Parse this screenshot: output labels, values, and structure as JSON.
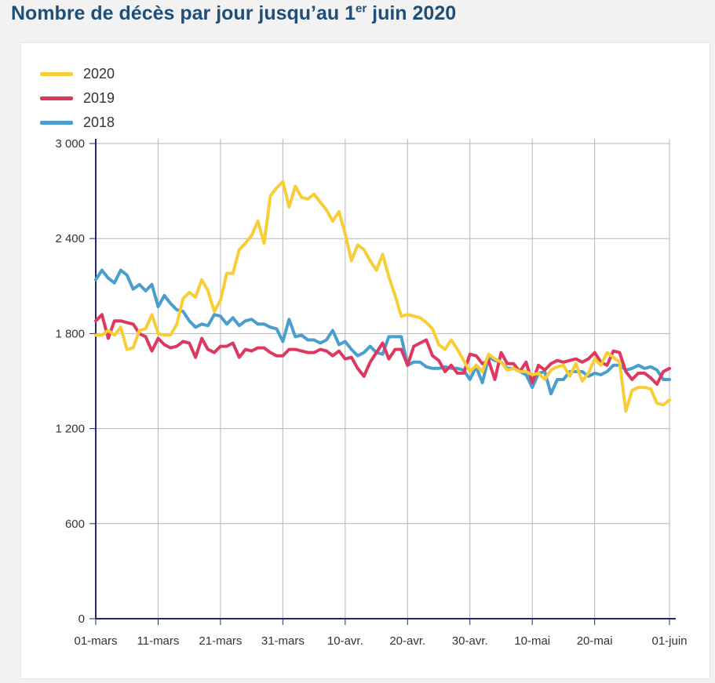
{
  "title": {
    "main": "Nombre de décès par jour jusqu’au 1",
    "sup": "er",
    "tail": " juin 2020"
  },
  "chart_data": {
    "type": "line",
    "title": "Nombre de décès par jour jusqu’au 1er juin 2020",
    "xlabel": "",
    "ylabel": "",
    "ylim": [
      0,
      3000
    ],
    "yticks": [
      0,
      600,
      1200,
      1800,
      2400,
      3000
    ],
    "ytick_labels": [
      "0",
      "600",
      "1 200",
      "1 800",
      "2 400",
      "3 000"
    ],
    "xticks": [
      0,
      10,
      20,
      30,
      40,
      50,
      60,
      70,
      80,
      92
    ],
    "xtick_labels": [
      "01-mars",
      "11-mars",
      "21-mars",
      "31-mars",
      "10-avr.",
      "20-avr.",
      "30-avr.",
      "10-mai",
      "20-mai",
      "01-juin"
    ],
    "x_range": [
      0,
      92
    ],
    "grid": true,
    "legend_position": "top-left",
    "series": [
      {
        "name": "2020",
        "color": "#f7cd38",
        "values": [
          1790,
          1790,
          1820,
          1790,
          1840,
          1700,
          1710,
          1820,
          1830,
          1920,
          1800,
          1790,
          1790,
          1860,
          2020,
          2060,
          2030,
          2140,
          2070,
          1940,
          2010,
          2180,
          2180,
          2330,
          2370,
          2420,
          2510,
          2370,
          2670,
          2720,
          2760,
          2600,
          2730,
          2660,
          2650,
          2680,
          2630,
          2580,
          2510,
          2570,
          2430,
          2260,
          2360,
          2330,
          2260,
          2200,
          2300,
          2160,
          2040,
          1910,
          1920,
          1910,
          1900,
          1870,
          1830,
          1730,
          1700,
          1760,
          1700,
          1630,
          1560,
          1600,
          1560,
          1670,
          1640,
          1620,
          1570,
          1580,
          1560,
          1560,
          1540,
          1550,
          1510,
          1570,
          1590,
          1600,
          1530,
          1610,
          1500,
          1550,
          1640,
          1600,
          1680,
          1650,
          1620,
          1310,
          1440,
          1460,
          1460,
          1450,
          1360,
          1350,
          1380
        ]
      },
      {
        "name": "2019",
        "color": "#dc3860",
        "values": [
          1880,
          1920,
          1770,
          1880,
          1880,
          1870,
          1860,
          1800,
          1780,
          1690,
          1770,
          1730,
          1710,
          1720,
          1750,
          1740,
          1650,
          1770,
          1700,
          1680,
          1720,
          1720,
          1740,
          1650,
          1700,
          1690,
          1710,
          1710,
          1680,
          1660,
          1660,
          1700,
          1700,
          1690,
          1680,
          1680,
          1700,
          1690,
          1660,
          1690,
          1640,
          1650,
          1580,
          1530,
          1620,
          1680,
          1740,
          1640,
          1700,
          1700,
          1600,
          1720,
          1740,
          1760,
          1660,
          1630,
          1560,
          1600,
          1550,
          1550,
          1670,
          1660,
          1610,
          1630,
          1510,
          1680,
          1610,
          1610,
          1560,
          1620,
          1490,
          1600,
          1570,
          1610,
          1630,
          1620,
          1630,
          1640,
          1620,
          1640,
          1680,
          1620,
          1600,
          1690,
          1680,
          1560,
          1510,
          1550,
          1550,
          1520,
          1480,
          1560,
          1580
        ]
      },
      {
        "name": "2018",
        "color": "#4a9ecd",
        "values": [
          2140,
          2200,
          2150,
          2120,
          2200,
          2170,
          2080,
          2110,
          2070,
          2110,
          1970,
          2040,
          1990,
          1950,
          1940,
          1880,
          1840,
          1860,
          1850,
          1920,
          1910,
          1860,
          1900,
          1850,
          1880,
          1890,
          1860,
          1860,
          1840,
          1830,
          1750,
          1890,
          1780,
          1790,
          1760,
          1760,
          1740,
          1760,
          1820,
          1730,
          1750,
          1700,
          1660,
          1680,
          1720,
          1680,
          1670,
          1780,
          1780,
          1780,
          1600,
          1620,
          1620,
          1590,
          1580,
          1580,
          1590,
          1580,
          1580,
          1570,
          1510,
          1590,
          1490,
          1650,
          1630,
          1620,
          1580,
          1580,
          1560,
          1540,
          1460,
          1550,
          1560,
          1420,
          1510,
          1510,
          1560,
          1560,
          1560,
          1530,
          1550,
          1540,
          1560,
          1600,
          1600,
          1570,
          1580,
          1600,
          1580,
          1590,
          1570,
          1510,
          1510
        ]
      }
    ]
  }
}
